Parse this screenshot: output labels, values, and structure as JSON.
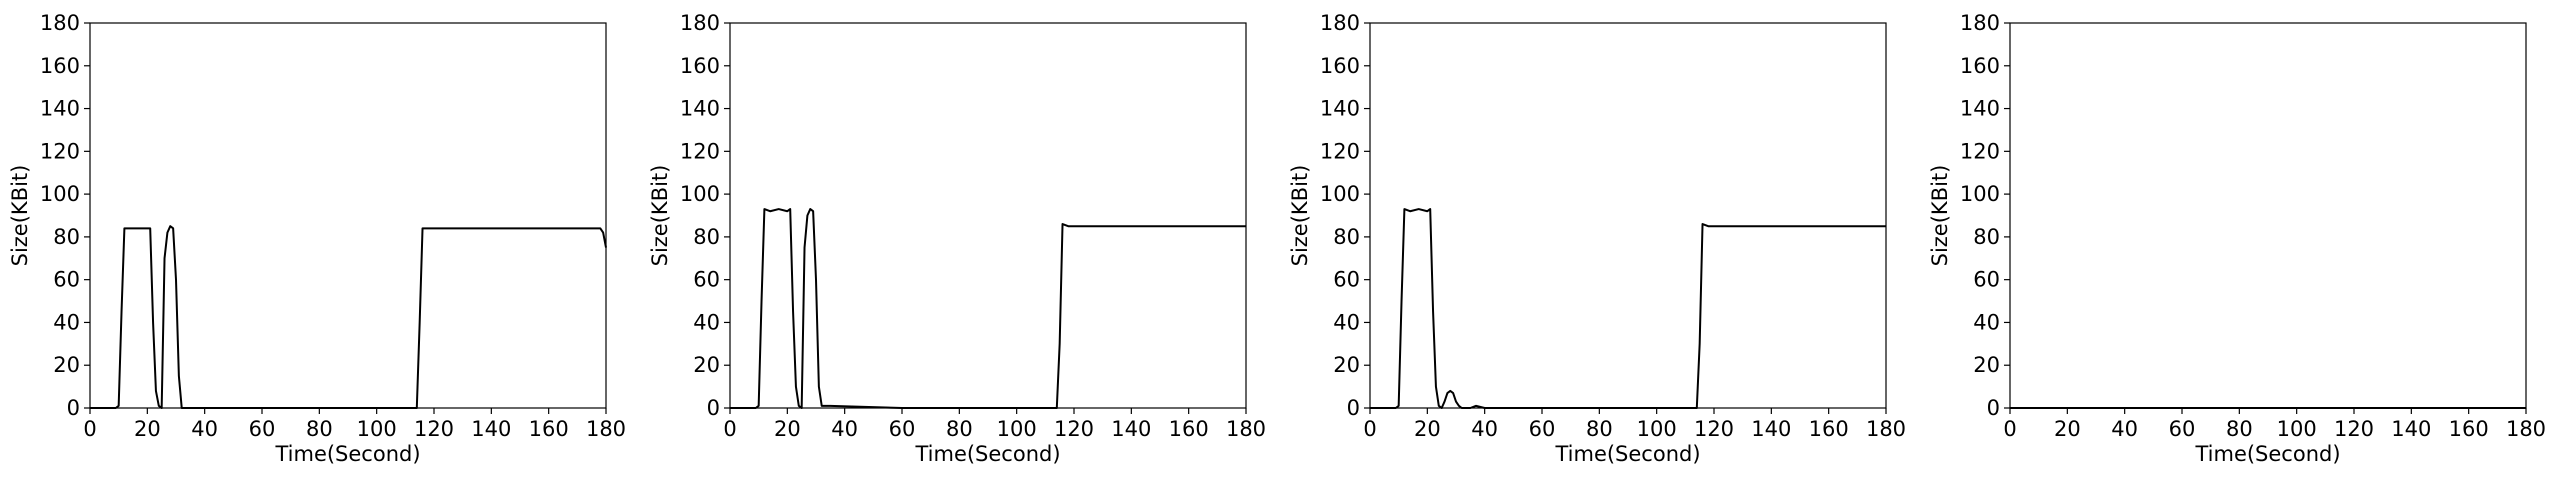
{
  "chart_data": [
    {
      "type": "line",
      "xlabel": "Time(Second)",
      "ylabel": "Size(KBit)",
      "xlim": [
        0,
        180
      ],
      "ylim": [
        0,
        180
      ],
      "xticks": [
        0,
        20,
        40,
        60,
        80,
        100,
        120,
        140,
        160,
        180
      ],
      "yticks": [
        0,
        20,
        40,
        60,
        80,
        100,
        120,
        140,
        160,
        180
      ],
      "grid": false,
      "series": [
        {
          "x": [
            0,
            9,
            10,
            11,
            12,
            14,
            17,
            20,
            21,
            22,
            23,
            24,
            25,
            26,
            27,
            28,
            29,
            30,
            31,
            32,
            35,
            60,
            100,
            114,
            115,
            116,
            118,
            130,
            150,
            170,
            178,
            179,
            180
          ],
          "y": [
            0,
            0,
            1,
            45,
            84,
            84,
            84,
            84,
            84,
            40,
            8,
            1,
            0,
            70,
            82,
            85,
            84,
            60,
            15,
            0,
            0,
            0,
            0,
            0,
            40,
            84,
            84,
            84,
            84,
            84,
            84,
            82,
            75
          ]
        }
      ]
    },
    {
      "type": "line",
      "xlabel": "Time(Second)",
      "ylabel": "Size(KBit)",
      "xlim": [
        0,
        180
      ],
      "ylim": [
        0,
        180
      ],
      "xticks": [
        0,
        20,
        40,
        60,
        80,
        100,
        120,
        140,
        160,
        180
      ],
      "yticks": [
        0,
        20,
        40,
        60,
        80,
        100,
        120,
        140,
        160,
        180
      ],
      "grid": false,
      "series": [
        {
          "x": [
            0,
            9,
            10,
            11,
            12,
            14,
            17,
            20,
            21,
            22,
            23,
            24,
            25,
            26,
            27,
            28,
            29,
            30,
            31,
            32,
            35,
            60,
            100,
            114,
            115,
            116,
            118,
            130,
            150,
            170,
            180
          ],
          "y": [
            0,
            0,
            1,
            50,
            93,
            92,
            93,
            92,
            93,
            45,
            10,
            1,
            0,
            75,
            90,
            93,
            92,
            60,
            10,
            1,
            1,
            0,
            0,
            0,
            30,
            86,
            85,
            85,
            85,
            85,
            85
          ]
        }
      ]
    },
    {
      "type": "line",
      "xlabel": "Time(Second)",
      "ylabel": "Size(KBit)",
      "xlim": [
        0,
        180
      ],
      "ylim": [
        0,
        180
      ],
      "xticks": [
        0,
        20,
        40,
        60,
        80,
        100,
        120,
        140,
        160,
        180
      ],
      "yticks": [
        0,
        20,
        40,
        60,
        80,
        100,
        120,
        140,
        160,
        180
      ],
      "grid": false,
      "series": [
        {
          "x": [
            0,
            9,
            10,
            11,
            12,
            14,
            17,
            20,
            21,
            22,
            23,
            24,
            25,
            26,
            27,
            28,
            29,
            30,
            31,
            32,
            35,
            37,
            40,
            60,
            100,
            114,
            115,
            116,
            118,
            130,
            150,
            170,
            180
          ],
          "y": [
            0,
            0,
            1,
            50,
            93,
            92,
            93,
            92,
            93,
            45,
            10,
            1,
            0,
            3,
            7,
            8,
            7,
            3,
            1,
            0,
            0,
            1,
            0,
            0,
            0,
            0,
            30,
            86,
            85,
            85,
            85,
            85,
            85
          ]
        }
      ]
    },
    {
      "type": "line",
      "xlabel": "Time(Second)",
      "ylabel": "Size(KBit)",
      "xlim": [
        0,
        180
      ],
      "ylim": [
        0,
        180
      ],
      "xticks": [
        0,
        20,
        40,
        60,
        80,
        100,
        120,
        140,
        160,
        180
      ],
      "yticks": [
        0,
        20,
        40,
        60,
        80,
        100,
        120,
        140,
        160,
        180
      ],
      "grid": false,
      "series": [
        {
          "x": [
            0,
            30,
            60,
            90,
            120,
            150,
            180
          ],
          "y": [
            0,
            0,
            0,
            0,
            0,
            0,
            0
          ]
        }
      ]
    }
  ]
}
